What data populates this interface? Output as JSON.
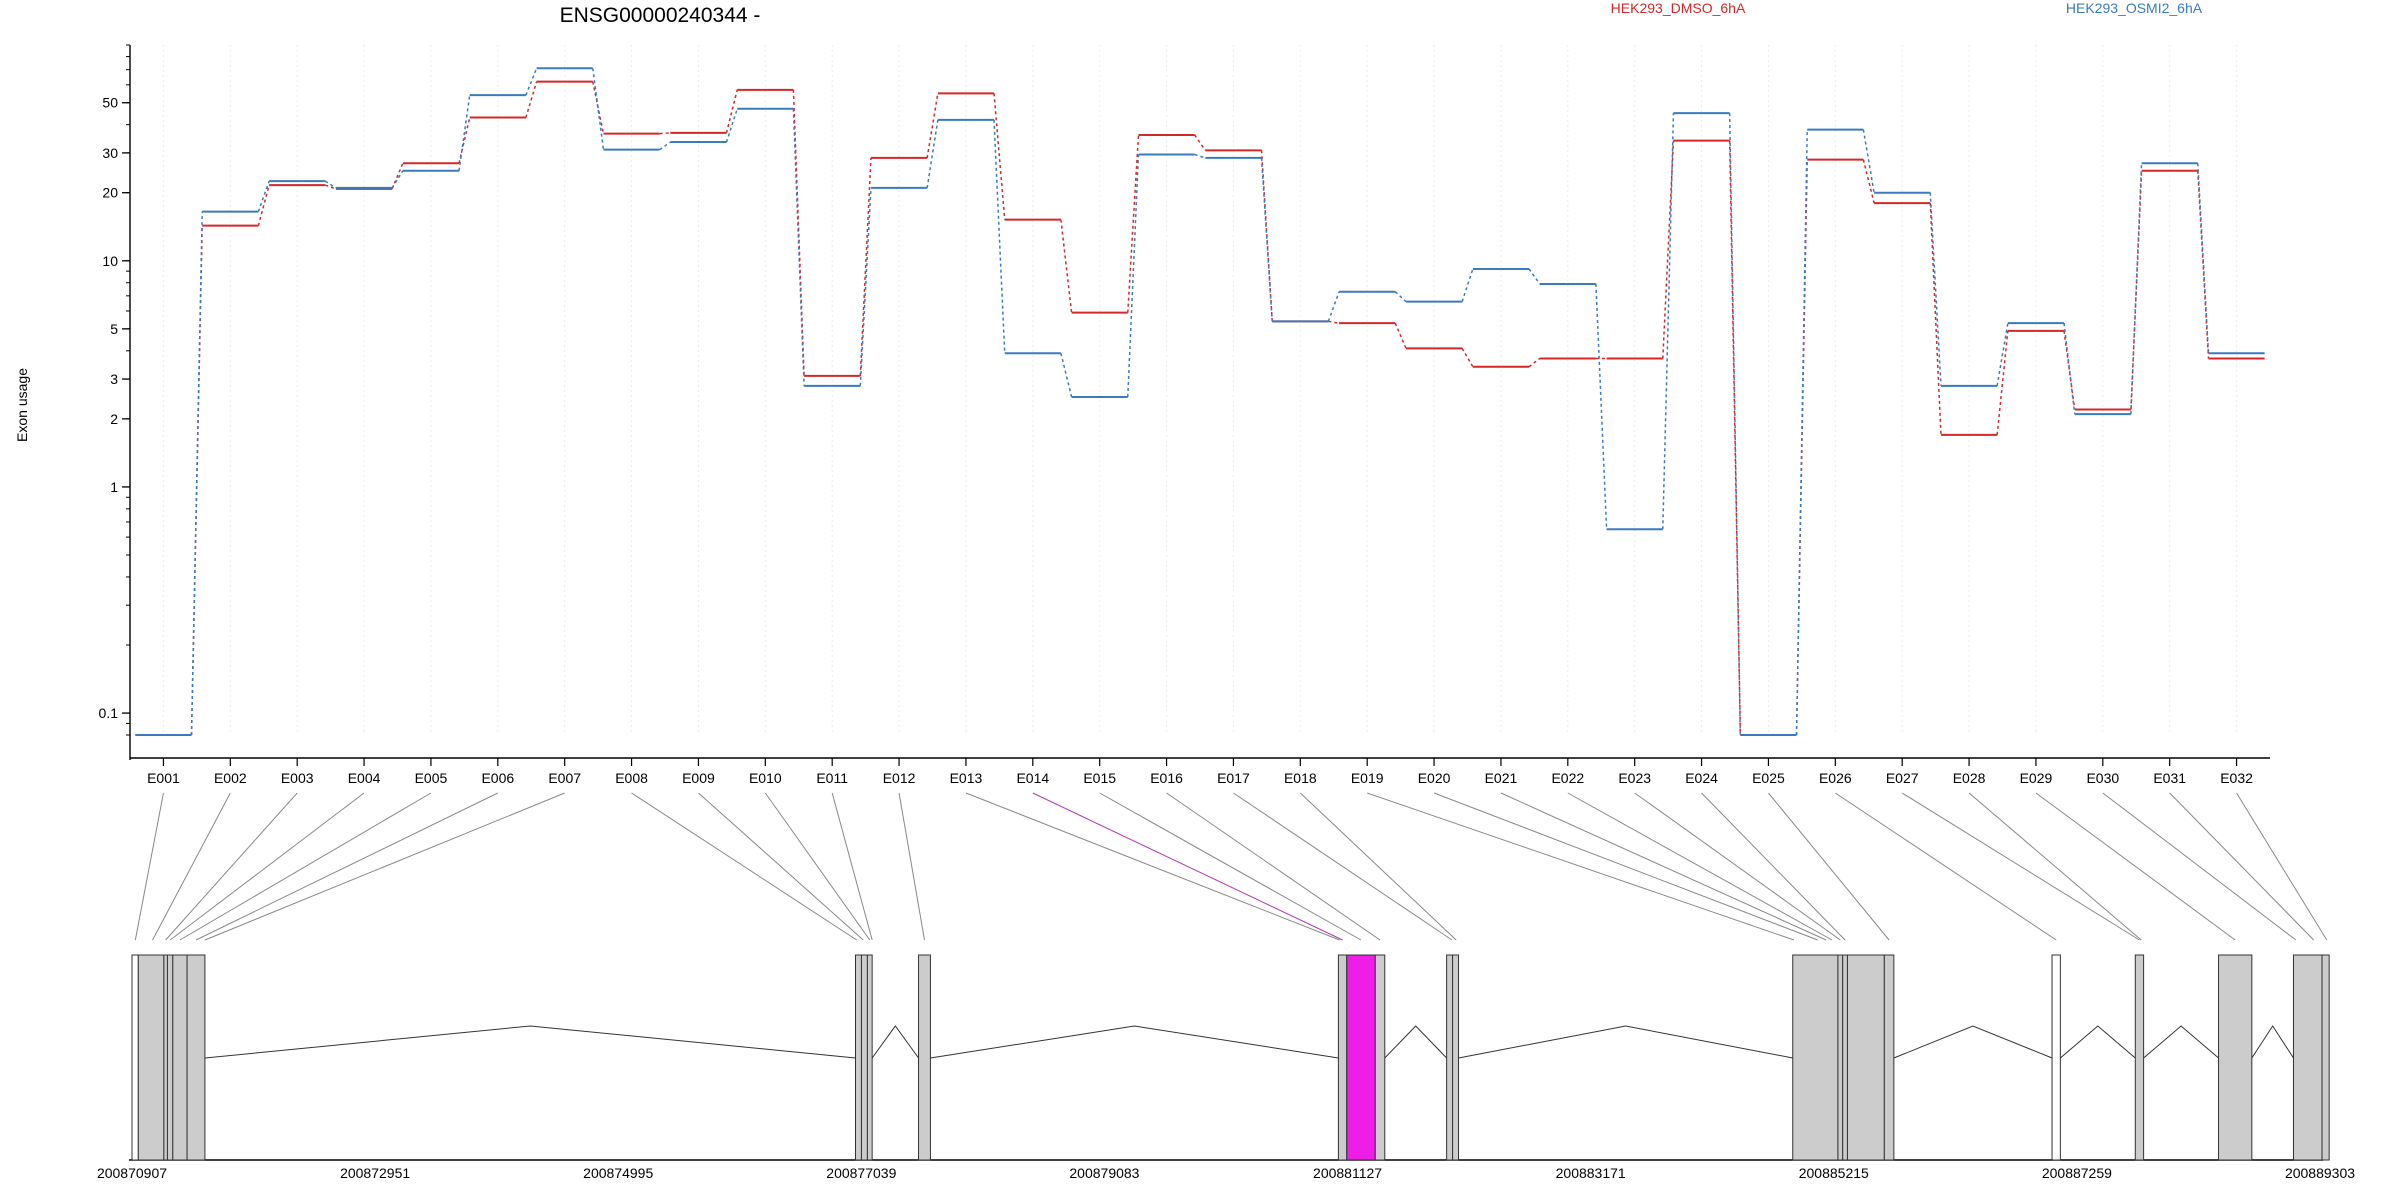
{
  "chart_data": {
    "type": "line",
    "title": "ENSG00000240344 -",
    "ylabel": "Exon usage",
    "yscale": "log",
    "ylim": [
      0.08,
      90
    ],
    "yticks": [
      {
        "v": 0.1,
        "label": "0.1"
      },
      {
        "v": 1,
        "label": "1"
      },
      {
        "v": 2,
        "label": "2"
      },
      {
        "v": 3,
        "label": "3"
      },
      {
        "v": 5,
        "label": "5"
      },
      {
        "v": 10,
        "label": "10"
      },
      {
        "v": 20,
        "label": "20"
      },
      {
        "v": 30,
        "label": "30"
      },
      {
        "v": 50,
        "label": "50"
      }
    ],
    "categories": [
      "E001",
      "E002",
      "E003",
      "E004",
      "E005",
      "E006",
      "E007",
      "E008",
      "E009",
      "E010",
      "E011",
      "E012",
      "E013",
      "E014",
      "E015",
      "E016",
      "E017",
      "E018",
      "E019",
      "E020",
      "E021",
      "E022",
      "E023",
      "E024",
      "E025",
      "E026",
      "E027",
      "E028",
      "E029",
      "E030",
      "E031",
      "E032"
    ],
    "highlight_exon": "E014",
    "series": [
      {
        "name": "HEK293_DMSO_6hA",
        "color": "#d62728",
        "values": [
          0.08,
          14.3,
          21.6,
          20.8,
          27.0,
          43.0,
          62.0,
          36.5,
          36.8,
          57.0,
          3.1,
          28.5,
          55.0,
          15.2,
          5.9,
          36.0,
          30.8,
          5.4,
          5.3,
          4.1,
          3.4,
          3.7,
          3.7,
          34.0,
          0.08,
          28.0,
          18.0,
          1.7,
          4.9,
          2.2,
          25.0,
          3.7
        ]
      },
      {
        "name": "HEK293_OSMI2_6hA",
        "color": "#3a7bbf",
        "values": [
          0.08,
          16.5,
          22.5,
          21.0,
          25.0,
          54.0,
          71.0,
          31.0,
          33.5,
          47.0,
          2.8,
          21.0,
          42.0,
          3.9,
          2.5,
          29.5,
          28.5,
          5.4,
          7.3,
          6.6,
          9.2,
          7.9,
          0.65,
          45.0,
          0.08,
          38.0,
          20.0,
          2.8,
          5.3,
          2.1,
          27.0,
          3.9
        ]
      }
    ],
    "gene_model": {
      "coordinate_labels": [
        "200870907",
        "200872951",
        "200874995",
        "200877039",
        "200879083",
        "200881127",
        "200883171",
        "200885215",
        "200887259",
        "200889303"
      ],
      "exons": [
        {
          "start": 200870907,
          "end": 200870960,
          "fill": "white"
        },
        {
          "start": 200870960,
          "end": 200871175,
          "fill": "gray"
        },
        {
          "start": 200871175,
          "end": 200871205,
          "fill": "gray"
        },
        {
          "start": 200871205,
          "end": 200871250,
          "fill": "gray"
        },
        {
          "start": 200871250,
          "end": 200871370,
          "fill": "gray"
        },
        {
          "start": 200871370,
          "end": 200871520,
          "fill": "gray"
        },
        {
          "start": 200876990,
          "end": 200877040,
          "fill": "gray"
        },
        {
          "start": 200877040,
          "end": 200877090,
          "fill": "gray"
        },
        {
          "start": 200877090,
          "end": 200877130,
          "fill": "gray"
        },
        {
          "start": 200877520,
          "end": 200877620,
          "fill": "gray"
        },
        {
          "start": 200881050,
          "end": 200881120,
          "fill": "gray"
        },
        {
          "start": 200881120,
          "end": 200881360,
          "fill": "magenta"
        },
        {
          "start": 200881360,
          "end": 200881440,
          "fill": "gray"
        },
        {
          "start": 200881960,
          "end": 200882010,
          "fill": "gray"
        },
        {
          "start": 200882010,
          "end": 200882060,
          "fill": "gray"
        },
        {
          "start": 200884870,
          "end": 200885250,
          "fill": "gray"
        },
        {
          "start": 200885250,
          "end": 200885290,
          "fill": "gray"
        },
        {
          "start": 200885290,
          "end": 200885330,
          "fill": "gray"
        },
        {
          "start": 200885330,
          "end": 200885640,
          "fill": "gray"
        },
        {
          "start": 200885640,
          "end": 200885720,
          "fill": "gray"
        },
        {
          "start": 200887050,
          "end": 200887120,
          "fill": "white"
        },
        {
          "start": 200887750,
          "end": 200887820,
          "fill": "gray"
        },
        {
          "start": 200888450,
          "end": 200888730,
          "fill": "gray"
        },
        {
          "start": 200889080,
          "end": 200889320,
          "fill": "gray"
        },
        {
          "start": 200889320,
          "end": 200889380,
          "fill": "gray"
        }
      ],
      "exon_links": [
        200870935,
        200871080,
        200871190,
        200871228,
        200871310,
        200871445,
        200871520,
        200877000,
        200877055,
        200877110,
        200877130,
        200877570,
        200881060,
        200881085,
        200881240,
        200881400,
        200882005,
        200882040,
        200884880,
        200885080,
        200885150,
        200885200,
        200885270,
        200885310,
        200885680,
        200887085,
        200887785,
        200887800,
        200888590,
        200889100,
        200889250,
        200889360
      ]
    }
  }
}
